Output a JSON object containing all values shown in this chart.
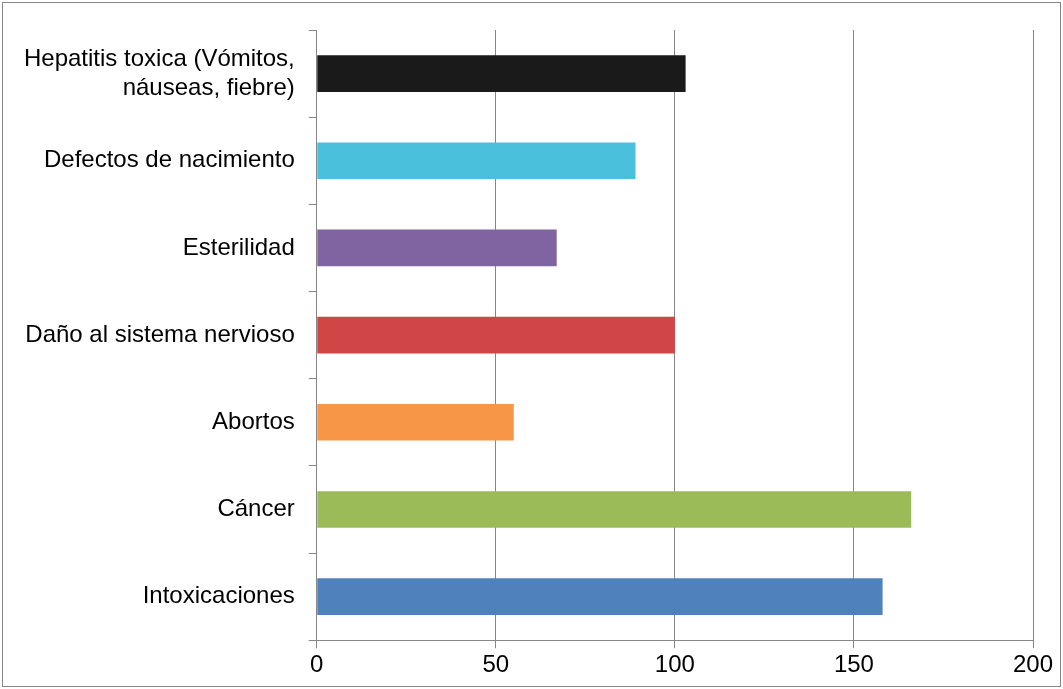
{
  "chart_data": {
    "type": "bar",
    "orientation": "horizontal",
    "categories": [
      "Hepatitis toxica (Vómitos, náuseas, fiebre)",
      "Defectos de nacimiento",
      "Esterilidad",
      "Daño al sistema nervioso",
      "Abortos",
      "Cáncer",
      "Intoxicaciones"
    ],
    "values": [
      103,
      89,
      67,
      100,
      55,
      166,
      158
    ],
    "colors": [
      "#1a1a1a",
      "#4bc0dc",
      "#8064a2",
      "#d04545",
      "#f79646",
      "#9bbb59",
      "#4f81bd"
    ],
    "xlim": [
      0,
      200
    ],
    "xticks": [
      0,
      50,
      100,
      150,
      200
    ],
    "grid": "x",
    "legend": false
  }
}
